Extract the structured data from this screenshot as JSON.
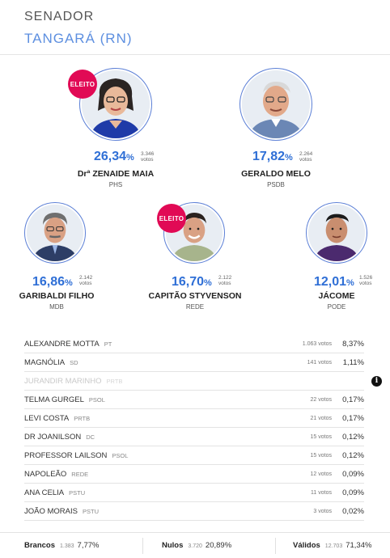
{
  "header": {
    "office": "SENADOR",
    "place": "TANGARÁ (RN)"
  },
  "badge_label": "ELEITO",
  "top_candidates": [
    {
      "name": "Drª ZENAIDE MAIA",
      "party": "PHS",
      "pct": "26,34",
      "pct_sign": "%",
      "votes": "3.346",
      "votes_label": "votos",
      "elected": true
    },
    {
      "name": "GERALDO MELO",
      "party": "PSDB",
      "pct": "17,82",
      "pct_sign": "%",
      "votes": "2.264",
      "votes_label": "votos",
      "elected": false
    },
    {
      "name": "GARIBALDI FILHO",
      "party": "MDB",
      "pct": "16,86",
      "pct_sign": "%",
      "votes": "2.142",
      "votes_label": "votos",
      "elected": false
    },
    {
      "name": "CAPITÃO STYVENSON",
      "party": "REDE",
      "pct": "16,70",
      "pct_sign": "%",
      "votes": "2.122",
      "votes_label": "votos",
      "elected": true
    },
    {
      "name": "JÁCOME",
      "party": "PODE",
      "pct": "12,01",
      "pct_sign": "%",
      "votes": "1.526",
      "votes_label": "votos",
      "elected": false
    }
  ],
  "others": [
    {
      "name": "ALEXANDRE MOTTA",
      "party": "PT",
      "votes": "1.063 votos",
      "pct": "8,37%"
    },
    {
      "name": "MAGNÓLIA",
      "party": "SD",
      "votes": "141 votos",
      "pct": "1,11%"
    },
    {
      "name": "JURANDIR MARINHO",
      "party": "PRTB",
      "votes": "",
      "pct": "",
      "muted": true,
      "info": "i"
    },
    {
      "name": "TELMA GURGEL",
      "party": "PSOL",
      "votes": "22 votos",
      "pct": "0,17%"
    },
    {
      "name": "LEVI COSTA",
      "party": "PRTB",
      "votes": "21 votos",
      "pct": "0,17%"
    },
    {
      "name": "DR JOANILSON",
      "party": "DC",
      "votes": "15 votos",
      "pct": "0,12%"
    },
    {
      "name": "PROFESSOR LAILSON",
      "party": "PSOL",
      "votes": "15 votos",
      "pct": "0,12%"
    },
    {
      "name": "NAPOLEÃO",
      "party": "REDE",
      "votes": "12 votos",
      "pct": "0,09%"
    },
    {
      "name": "ANA CELIA",
      "party": "PSTU",
      "votes": "11 votos",
      "pct": "0,09%"
    },
    {
      "name": "JOÃO MORAIS",
      "party": "PSTU",
      "votes": "3 votos",
      "pct": "0,02%"
    }
  ],
  "footer": {
    "brancos": {
      "label": "Brancos",
      "votes": "1.383",
      "pct": "7,77%"
    },
    "nulos": {
      "label": "Nulos",
      "votes": "3.720",
      "pct": "20,89%"
    },
    "validos": {
      "label": "Válidos",
      "votes": "12.703",
      "pct": "71,34%"
    }
  },
  "colors": {
    "accent": "#2f6fd6",
    "place": "#5d8fe0",
    "badge": "#e10a55"
  }
}
